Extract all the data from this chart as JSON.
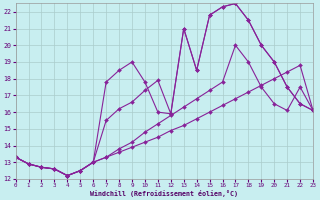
{
  "bg_color": "#c8eef0",
  "grid_color": "#aacccc",
  "line_color": "#882299",
  "xlim": [
    0,
    23
  ],
  "ylim": [
    12,
    22.5
  ],
  "yticks": [
    12,
    13,
    14,
    15,
    16,
    17,
    18,
    19,
    20,
    21,
    22
  ],
  "xticks": [
    0,
    1,
    2,
    3,
    4,
    5,
    6,
    7,
    8,
    9,
    10,
    11,
    12,
    13,
    14,
    15,
    16,
    17,
    18,
    19,
    20,
    21,
    22,
    23
  ],
  "xlabel": "Windchill (Refroidissement éolien,°C)",
  "lines": [
    [
      0,
      1,
      2,
      3,
      4,
      5,
      6,
      7,
      8,
      9,
      10,
      11,
      12,
      13,
      14,
      15,
      16,
      17,
      18,
      19,
      20,
      21,
      22,
      23
    ],
    [
      13.3,
      12.9,
      12.7,
      12.6,
      12.2,
      12.5,
      13.0,
      17.8,
      18.5,
      19.0,
      17.8,
      16.0,
      15.9,
      21.0,
      18.5,
      21.8,
      22.3,
      22.5,
      21.5,
      20.0,
      19.0,
      17.5,
      16.5,
      16.1
    ],
    [
      0,
      1,
      2,
      3,
      4,
      5,
      6,
      7,
      8,
      9,
      10,
      11,
      12,
      13,
      14,
      15,
      16,
      17,
      18,
      19,
      20,
      21,
      22,
      23
    ],
    [
      13.3,
      12.9,
      12.7,
      12.6,
      12.2,
      12.5,
      13.0,
      13.3,
      13.6,
      13.9,
      14.2,
      14.5,
      14.9,
      15.2,
      15.6,
      16.0,
      16.4,
      16.8,
      17.2,
      17.6,
      18.0,
      18.4,
      18.8,
      16.1
    ],
    [
      0,
      1,
      2,
      3,
      4,
      5,
      6,
      7,
      8,
      9,
      10,
      11,
      12,
      13,
      14,
      15,
      16,
      17,
      18,
      19,
      20,
      21,
      22,
      23
    ],
    [
      13.3,
      12.9,
      12.7,
      12.6,
      12.2,
      12.5,
      13.0,
      15.5,
      16.2,
      16.6,
      17.3,
      17.9,
      15.9,
      21.0,
      18.5,
      21.8,
      22.3,
      22.5,
      21.5,
      20.0,
      19.0,
      17.5,
      16.5,
      16.1
    ],
    [
      0,
      1,
      2,
      3,
      4,
      5,
      6,
      7,
      8,
      9,
      10,
      11,
      12,
      13,
      14,
      15,
      16,
      17,
      18,
      19,
      20,
      21,
      22,
      23
    ],
    [
      13.3,
      12.9,
      12.7,
      12.6,
      12.2,
      12.5,
      13.0,
      13.3,
      13.8,
      14.2,
      14.8,
      15.3,
      15.8,
      16.3,
      16.8,
      17.3,
      17.8,
      20.0,
      19.0,
      17.5,
      16.5,
      16.1,
      17.5,
      16.1
    ]
  ]
}
